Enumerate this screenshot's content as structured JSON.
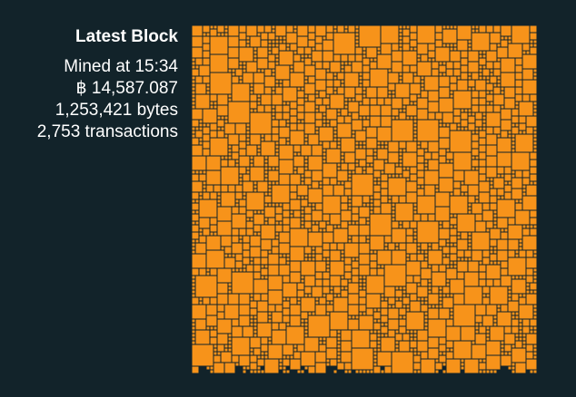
{
  "block": {
    "title": "Latest Block",
    "mined_at": "Mined at 15:34",
    "amount": "฿ 14,587.087",
    "size": "1,253,421 bytes",
    "transactions": "2,753 transactions"
  },
  "colors": {
    "background": "#12232a",
    "tx_fill": "#f7931a",
    "text": "#ffffff"
  }
}
